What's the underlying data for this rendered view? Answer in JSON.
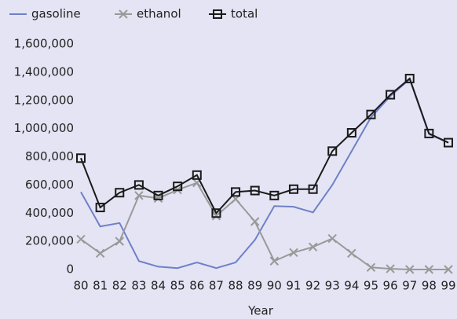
{
  "chart_data": {
    "type": "line",
    "x_label": "Year",
    "categories": [
      "80",
      "81",
      "82",
      "83",
      "84",
      "85",
      "86",
      "87",
      "88",
      "89",
      "90",
      "91",
      "92",
      "93",
      "94",
      "95",
      "96",
      "97",
      "98",
      "99"
    ],
    "series": [
      {
        "name": "gasoline",
        "color": "#6f80c8",
        "marker": "none",
        "values": [
          550000,
          305000,
          330000,
          60000,
          20000,
          10000,
          50000,
          10000,
          50000,
          210000,
          450000,
          445000,
          405000,
          600000,
          840000,
          1080000,
          1230000,
          1350000,
          960000,
          900000
        ]
      },
      {
        "name": "ethanol",
        "color": "#999999",
        "marker": "x",
        "values": [
          215000,
          115000,
          200000,
          525000,
          505000,
          565000,
          615000,
          380000,
          500000,
          340000,
          60000,
          120000,
          160000,
          220000,
          115000,
          15000,
          5000,
          0,
          0,
          0
        ]
      },
      {
        "name": "total",
        "color": "#1a1a1a",
        "marker": "square",
        "values": [
          790000,
          440000,
          545000,
          600000,
          525000,
          590000,
          670000,
          400000,
          550000,
          560000,
          525000,
          570000,
          570000,
          840000,
          970000,
          1100000,
          1240000,
          1355000,
          965000,
          900000
        ]
      }
    ],
    "ylim": [
      0,
      1600000
    ],
    "yticks": [
      0,
      {
        "value": 200000,
        "label": "200,000"
      },
      {
        "value": 400000,
        "label": "400,000"
      },
      {
        "value": 600000,
        "label": "600,000"
      },
      {
        "value": 800000,
        "label": "800,000"
      },
      {
        "value": 1000000,
        "label": "1,000,000"
      },
      {
        "value": 1200000,
        "label": "1,200,000"
      },
      {
        "value": 1400000,
        "label": "1,400,000"
      },
      {
        "value": 1600000,
        "label": "1,600,000"
      }
    ],
    "legend": "top"
  }
}
